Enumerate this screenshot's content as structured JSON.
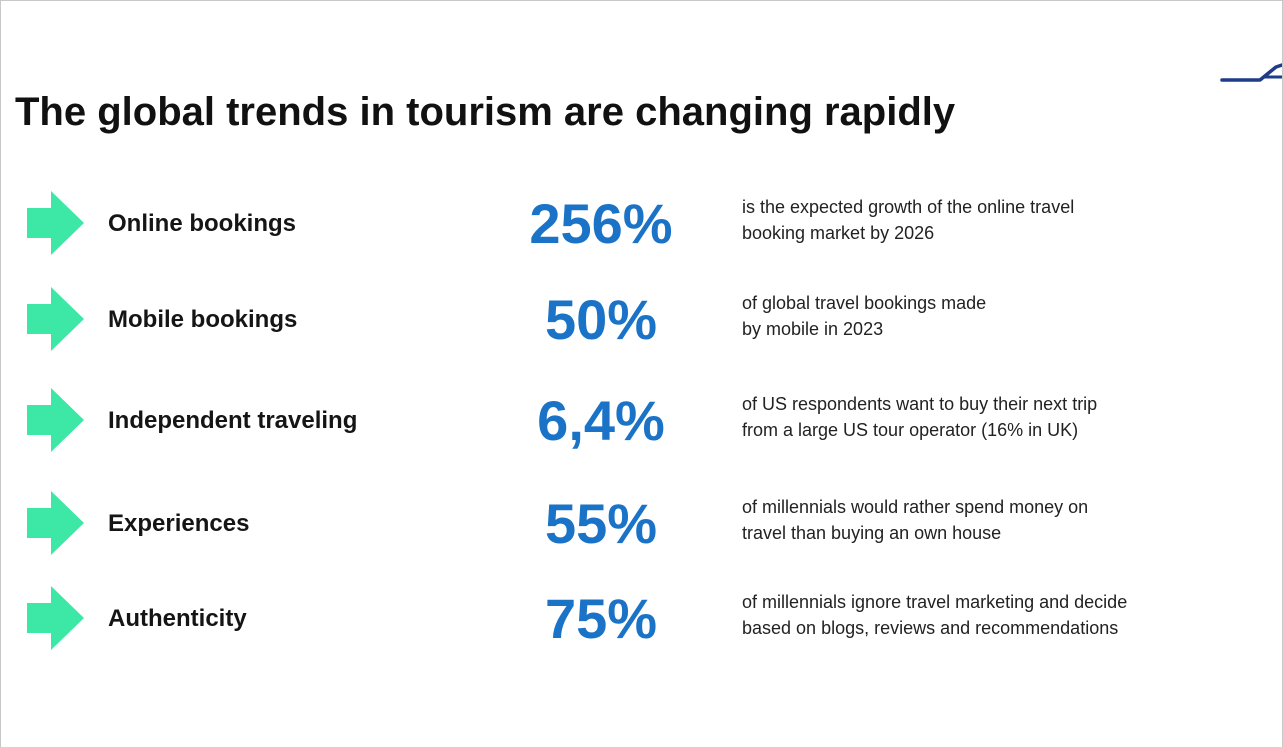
{
  "slide": {
    "title": "The global trends in tourism are changing rapidly",
    "accent_color": "#3de8a6",
    "stat_color": "#1a73c6",
    "logo_color": "#1f3c88",
    "icons": {
      "arrow": "arrow-right-icon",
      "logo": "logo-mark"
    },
    "rows": [
      {
        "label": "Online bookings",
        "percent": "256%",
        "description": "is the expected growth of the online travel\nbooking market by 2026"
      },
      {
        "label": "Mobile bookings",
        "percent": "50%",
        "description": "of global travel bookings made\nby mobile in 2023"
      },
      {
        "label": "Independent traveling",
        "percent": "6,4%",
        "description": "of US respondents want to buy their next trip\nfrom a large US tour operator (16% in UK)"
      },
      {
        "label": "Experiences",
        "percent": "55%",
        "description": "of millennials would rather spend money on\ntravel than buying an own house"
      },
      {
        "label": "Authenticity",
        "percent": "75%",
        "description": "of millennials ignore travel marketing and decide\nbased on blogs, reviews and recommendations"
      }
    ]
  }
}
